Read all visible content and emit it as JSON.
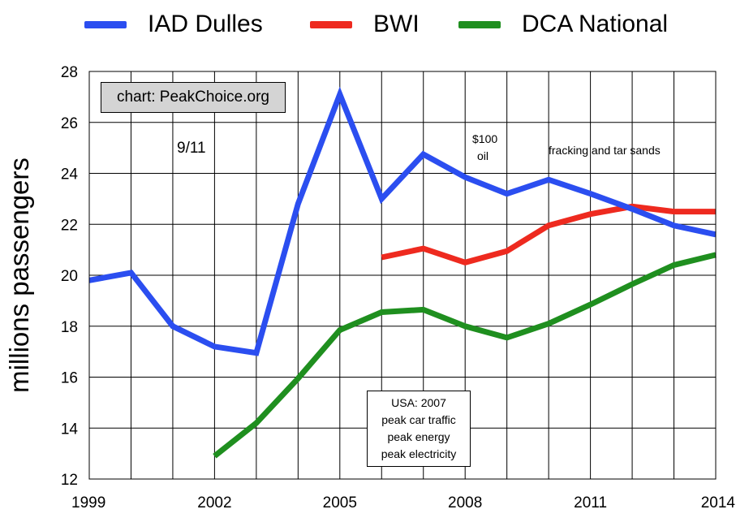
{
  "legend": [
    {
      "label": "IAD Dulles",
      "color": "#2b4ef0"
    },
    {
      "label": "BWI",
      "color": "#ee2a1f"
    },
    {
      "label": "DCA National",
      "color": "#1f8f1f"
    }
  ],
  "annotations": {
    "credit": "chart: PeakChoice.org",
    "sept11": "9/11",
    "oil_line1": "$100",
    "oil_line2": "oil",
    "fracking": "fracking and tar sands",
    "peak_lines": [
      "USA: 2007",
      "peak car traffic",
      "peak energy",
      "peak electricity"
    ]
  },
  "chart_data": {
    "type": "line",
    "title": "",
    "xlabel": "",
    "ylabel": "millions passengers",
    "x": [
      1999,
      2000,
      2001,
      2002,
      2003,
      2004,
      2005,
      2006,
      2007,
      2008,
      2009,
      2010,
      2011,
      2012,
      2013,
      2014
    ],
    "xlim": [
      1999,
      2014
    ],
    "ylim": [
      12,
      28
    ],
    "x_ticks": [
      1999,
      2002,
      2005,
      2008,
      2011,
      2014
    ],
    "y_ticks": [
      12,
      14,
      16,
      18,
      20,
      22,
      24,
      26,
      28
    ],
    "grid": true,
    "legend_position": "top",
    "series": [
      {
        "name": "IAD Dulles",
        "color": "#2b4ef0",
        "values": [
          19.8,
          20.1,
          18.0,
          17.2,
          16.95,
          22.8,
          27.1,
          23.0,
          24.75,
          23.85,
          23.2,
          23.75,
          23.2,
          22.6,
          21.95,
          21.6
        ]
      },
      {
        "name": "BWI",
        "color": "#ee2a1f",
        "values": [
          null,
          null,
          null,
          null,
          null,
          null,
          null,
          20.7,
          21.05,
          20.5,
          20.95,
          21.95,
          22.4,
          22.7,
          22.5,
          22.5
        ]
      },
      {
        "name": "DCA National",
        "color": "#1f8f1f",
        "values": [
          null,
          null,
          null,
          12.9,
          14.2,
          15.95,
          17.85,
          18.55,
          18.65,
          18.0,
          17.55,
          18.1,
          18.85,
          19.65,
          20.4,
          20.8
        ]
      }
    ]
  }
}
